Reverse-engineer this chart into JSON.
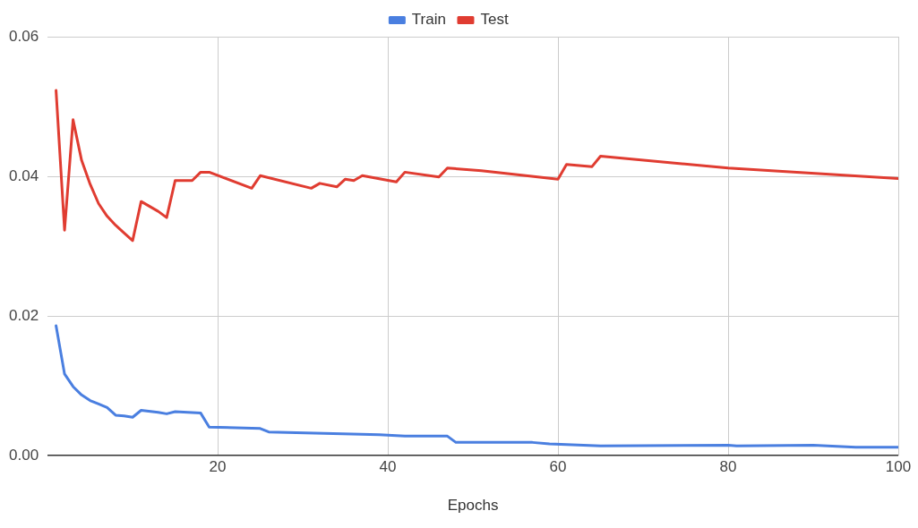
{
  "chart_data": {
    "type": "line",
    "xlabel": "Epochs",
    "xlim": [
      0,
      100
    ],
    "xticks": [
      20,
      40,
      60,
      80,
      100
    ],
    "ylim": [
      0,
      0.06
    ],
    "yticks": [
      {
        "value": 0,
        "label": "0.00"
      },
      {
        "value": 0.02,
        "label": "0.02"
      },
      {
        "value": 0.04,
        "label": "0.04"
      },
      {
        "value": 0.06,
        "label": "0.06"
      }
    ],
    "grid": true,
    "legend": "top",
    "marker": "none",
    "line_style": "solid",
    "series": [
      {
        "name": "Train",
        "color": "#4a7fe0",
        "x": [
          1,
          2,
          3,
          4,
          5,
          6,
          7,
          8,
          9,
          10,
          11,
          13,
          14,
          15,
          18,
          19,
          25,
          26,
          39,
          42,
          47,
          48,
          57,
          59,
          63,
          65,
          80,
          81,
          90,
          95,
          100
        ],
        "values": [
          0.0186,
          0.0117,
          0.0099,
          0.0087,
          0.0079,
          0.0074,
          0.0069,
          0.0058,
          0.0057,
          0.0055,
          0.0065,
          0.0062,
          0.006,
          0.0063,
          0.0061,
          0.0041,
          0.0039,
          0.0034,
          0.003,
          0.0028,
          0.0028,
          0.0019,
          0.0019,
          0.0017,
          0.0015,
          0.0014,
          0.0015,
          0.0014,
          0.0015,
          0.0012,
          0.0012
        ]
      },
      {
        "name": "Test",
        "color": "#e03c31",
        "x": [
          1,
          2,
          3,
          4,
          5,
          6,
          7,
          8,
          9,
          10,
          11,
          13,
          14,
          15,
          17,
          18,
          19,
          24,
          25,
          31,
          32,
          34,
          35,
          36,
          37,
          41,
          42,
          46,
          47,
          51,
          60,
          61,
          64,
          65,
          80,
          100
        ],
        "values": [
          0.0523,
          0.0323,
          0.0481,
          0.0423,
          0.0389,
          0.0361,
          0.0343,
          0.033,
          0.0319,
          0.0308,
          0.0364,
          0.035,
          0.0341,
          0.0394,
          0.0394,
          0.0406,
          0.0406,
          0.0383,
          0.0401,
          0.0383,
          0.039,
          0.0385,
          0.0396,
          0.0394,
          0.0401,
          0.0392,
          0.0406,
          0.0399,
          0.0412,
          0.0408,
          0.0396,
          0.0417,
          0.0414,
          0.0429,
          0.0412,
          0.0397
        ]
      }
    ]
  }
}
